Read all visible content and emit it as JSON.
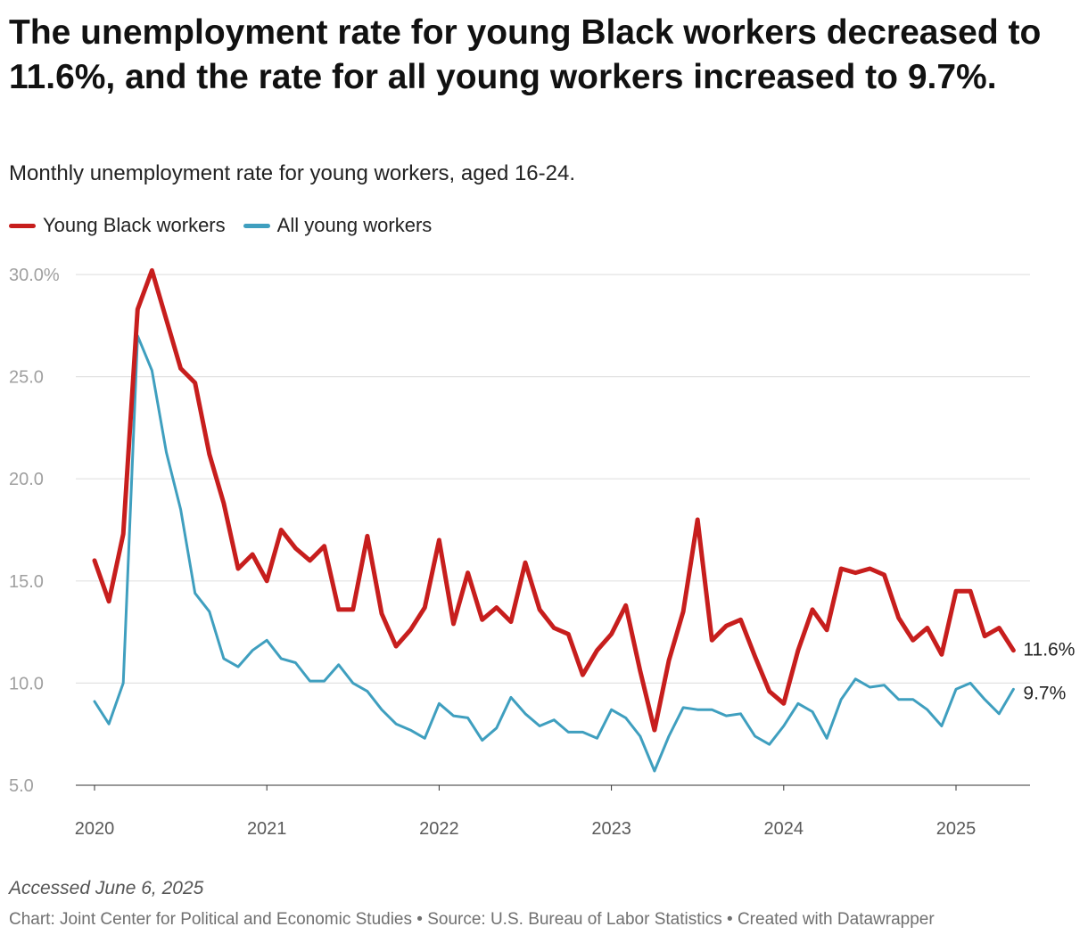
{
  "title": "The unemployment rate for young Black workers decreased to 11.6%, and the rate for all young workers increased to 9.7%.",
  "subtitle": "Monthly unemployment rate for young workers, aged 16-24.",
  "notes": "Accessed June 6, 2025",
  "footer": "Chart: Joint Center for Political and Economic Studies • Source: U.S. Bureau of Labor Statistics • Created with Datawrapper",
  "chart_data": {
    "type": "line",
    "x_start": "2020-01",
    "x_frequency": "monthly",
    "x_ticks": [
      "2020",
      "2021",
      "2022",
      "2023",
      "2024",
      "2025"
    ],
    "y_ticks": [
      "30.0%",
      "25.0",
      "20.0",
      "15.0",
      "10.0",
      "5.0"
    ],
    "ylim": [
      5,
      30
    ],
    "grid": true,
    "legend_position": "top-left",
    "series": [
      {
        "name": "Young Black workers",
        "color": "#c71e1d",
        "end_label": "11.6%",
        "values": [
          16.0,
          14.0,
          17.3,
          28.3,
          30.2,
          27.8,
          25.4,
          24.7,
          21.2,
          18.8,
          15.6,
          16.3,
          15.0,
          17.5,
          16.6,
          16.0,
          16.7,
          13.6,
          13.6,
          17.2,
          13.4,
          11.8,
          12.6,
          13.7,
          17.0,
          12.9,
          15.4,
          13.1,
          13.7,
          13.0,
          15.9,
          13.6,
          12.7,
          12.4,
          10.4,
          11.6,
          12.4,
          13.8,
          10.6,
          7.7,
          11.1,
          13.5,
          18.0,
          12.1,
          12.8,
          13.1,
          11.3,
          9.6,
          9.0,
          11.6,
          13.6,
          12.6,
          15.6,
          15.4,
          15.6,
          15.3,
          13.2,
          12.1,
          12.7,
          11.4,
          14.5,
          14.5,
          12.3,
          12.7,
          11.6
        ]
      },
      {
        "name": "All young workers",
        "color": "#3f9fbf",
        "end_label": "9.7%",
        "values": [
          9.1,
          8.0,
          10.0,
          27.0,
          25.3,
          21.3,
          18.5,
          14.4,
          13.5,
          11.2,
          10.8,
          11.6,
          12.1,
          11.2,
          11.0,
          10.1,
          10.1,
          10.9,
          10.0,
          9.6,
          8.7,
          8.0,
          7.7,
          7.3,
          9.0,
          8.4,
          8.3,
          7.2,
          7.8,
          9.3,
          8.5,
          7.9,
          8.2,
          7.6,
          7.6,
          7.3,
          8.7,
          8.3,
          7.4,
          5.7,
          7.4,
          8.8,
          8.7,
          8.7,
          8.4,
          8.5,
          7.4,
          7.0,
          7.9,
          9.0,
          8.6,
          7.3,
          9.2,
          10.2,
          9.8,
          9.9,
          9.2,
          9.2,
          8.7,
          7.9,
          9.7,
          10.0,
          9.2,
          8.5,
          9.7
        ]
      }
    ]
  }
}
